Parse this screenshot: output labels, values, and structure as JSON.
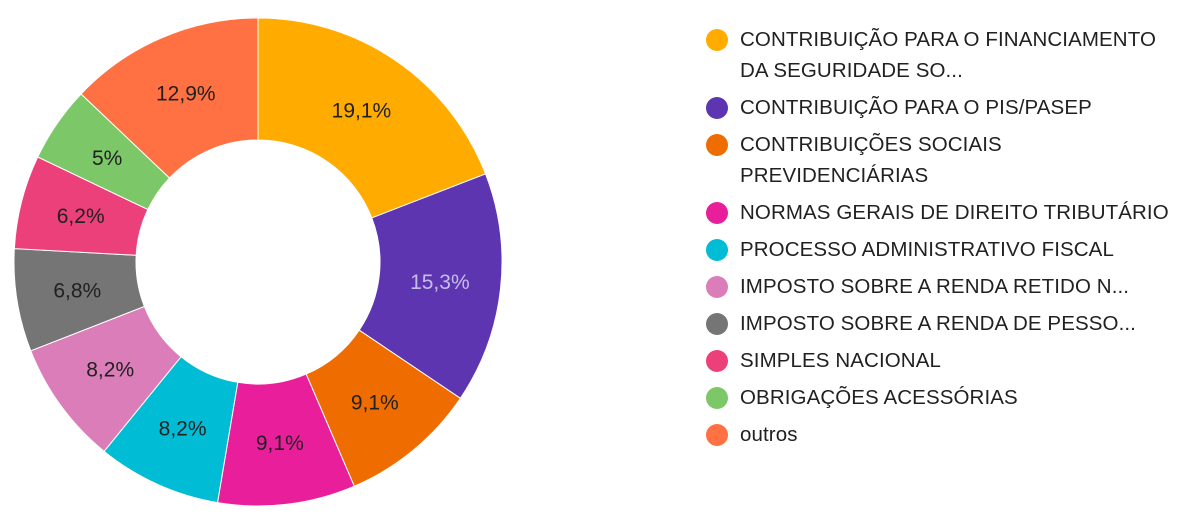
{
  "chart_data": {
    "type": "pie",
    "style": "donut",
    "legend_position": "right",
    "slices": [
      {
        "label": "CONTRIBUIÇÃO PARA O FINANCIAMENTO DA SEGURIDADE SO...",
        "value": 19.1,
        "value_label": "19,1%",
        "color": "#FFAB00",
        "text_color": "#212121"
      },
      {
        "label": "CONTRIBUIÇÃO PARA O PIS/PASEP",
        "value": 15.3,
        "value_label": "15,3%",
        "color": "#5E35B1",
        "text_color": "#C5BEE8"
      },
      {
        "label": "CONTRIBUIÇÕES SOCIAIS PREVIDENCIÁRIAS",
        "value": 9.1,
        "value_label": "9,1%",
        "color": "#EF6C00",
        "text_color": "#212121"
      },
      {
        "label": "NORMAS GERAIS DE DIREITO TRIBUTÁRIO",
        "value": 9.1,
        "value_label": "9,1%",
        "color": "#E91E9A",
        "text_color": "#212121"
      },
      {
        "label": "PROCESSO ADMINISTRATIVO FISCAL",
        "value": 8.2,
        "value_label": "8,2%",
        "color": "#00BCD4",
        "text_color": "#212121"
      },
      {
        "label": "IMPOSTO SOBRE A RENDA RETIDO N...",
        "value": 8.2,
        "value_label": "8,2%",
        "color": "#DB7DB8",
        "text_color": "#212121"
      },
      {
        "label": "IMPOSTO SOBRE A RENDA DE PESSO...",
        "value": 6.8,
        "value_label": "6,8%",
        "color": "#757575",
        "text_color": "#212121"
      },
      {
        "label": "SIMPLES NACIONAL",
        "value": 6.2,
        "value_label": "6,2%",
        "color": "#EC407A",
        "text_color": "#212121"
      },
      {
        "label": "OBRIGAÇÕES ACESSÓRIAS",
        "value": 5.0,
        "value_label": "5%",
        "color": "#7CC767",
        "text_color": "#212121"
      },
      {
        "label": "outros",
        "value": 12.9,
        "value_label": "12,9%",
        "color": "#FF7043",
        "text_color": "#212121"
      }
    ]
  }
}
